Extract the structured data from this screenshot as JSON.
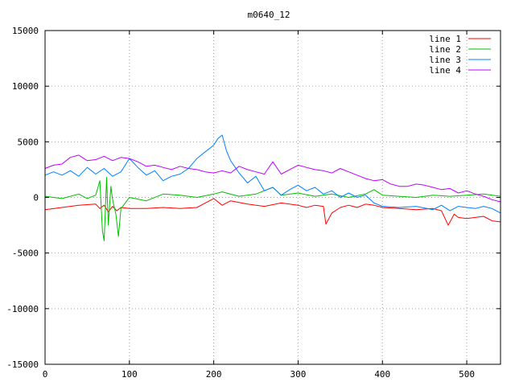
{
  "chart_data": {
    "type": "line",
    "title": "m0640_12",
    "xlabel": "",
    "ylabel": "",
    "xlim": [
      0,
      540
    ],
    "ylim": [
      -15000,
      15000
    ],
    "xticks": [
      0,
      100,
      200,
      300,
      400,
      500
    ],
    "yticks": [
      -15000,
      -10000,
      -5000,
      0,
      5000,
      10000,
      15000
    ],
    "grid": true,
    "legend_position": "top-right",
    "series": [
      {
        "name": "line 1",
        "color": "#ff0000",
        "x": [
          0,
          20,
          40,
          60,
          65,
          70,
          75,
          80,
          85,
          90,
          100,
          120,
          140,
          160,
          180,
          190,
          200,
          210,
          220,
          240,
          260,
          280,
          300,
          310,
          320,
          330,
          333,
          340,
          350,
          360,
          370,
          380,
          390,
          400,
          420,
          440,
          460,
          470,
          478,
          485,
          490,
          500,
          510,
          520,
          530,
          540
        ],
        "y": [
          -1100,
          -900,
          -700,
          -600,
          -1000,
          -700,
          -1300,
          -800,
          -1200,
          -900,
          -1000,
          -1000,
          -900,
          -1000,
          -900,
          -500,
          -100,
          -700,
          -300,
          -600,
          -800,
          -500,
          -700,
          -900,
          -700,
          -800,
          -2400,
          -1400,
          -900,
          -700,
          -900,
          -600,
          -700,
          -900,
          -1000,
          -1100,
          -1000,
          -1200,
          -2500,
          -1500,
          -1800,
          -1900,
          -1800,
          -1700,
          -2100,
          -2200
        ]
      },
      {
        "name": "line 2",
        "color": "#00c000",
        "x": [
          0,
          20,
          40,
          50,
          60,
          65,
          68,
          70,
          73,
          75,
          78,
          80,
          84,
          87,
          90,
          95,
          100,
          120,
          140,
          160,
          180,
          200,
          210,
          230,
          250,
          270,
          280,
          300,
          320,
          340,
          360,
          380,
          390,
          400,
          420,
          440,
          460,
          480,
          500,
          520,
          540
        ],
        "y": [
          100,
          -100,
          300,
          -100,
          200,
          1500,
          -3000,
          -3900,
          1800,
          -2500,
          1000,
          -200,
          -1500,
          -3500,
          -1000,
          -500,
          0,
          -300,
          300,
          200,
          0,
          300,
          500,
          100,
          300,
          900,
          200,
          400,
          100,
          300,
          0,
          300,
          700,
          200,
          100,
          0,
          200,
          100,
          200,
          300,
          100
        ]
      },
      {
        "name": "line 3",
        "color": "#0080ff",
        "x": [
          0,
          10,
          20,
          30,
          40,
          50,
          60,
          70,
          80,
          90,
          100,
          110,
          120,
          130,
          140,
          150,
          160,
          170,
          180,
          190,
          200,
          205,
          210,
          215,
          220,
          230,
          240,
          250,
          260,
          270,
          280,
          290,
          300,
          310,
          320,
          330,
          340,
          350,
          360,
          370,
          380,
          390,
          400,
          420,
          440,
          460,
          470,
          480,
          490,
          500,
          510,
          520,
          530,
          540
        ],
        "y": [
          2000,
          2300,
          2000,
          2400,
          1900,
          2700,
          2100,
          2600,
          1900,
          2300,
          3500,
          2700,
          2000,
          2400,
          1500,
          1900,
          2100,
          2600,
          3500,
          4100,
          4700,
          5300,
          5600,
          4200,
          3300,
          2200,
          1300,
          1900,
          600,
          900,
          200,
          700,
          1100,
          600,
          900,
          300,
          600,
          0,
          400,
          0,
          200,
          -500,
          -800,
          -900,
          -800,
          -1100,
          -700,
          -1200,
          -800,
          -900,
          -1000,
          -800,
          -1000,
          -1400
        ]
      },
      {
        "name": "line 4",
        "color": "#c000ff",
        "x": [
          0,
          10,
          20,
          30,
          40,
          50,
          60,
          70,
          80,
          90,
          100,
          110,
          120,
          130,
          140,
          150,
          160,
          170,
          180,
          190,
          200,
          210,
          220,
          230,
          240,
          250,
          260,
          270,
          280,
          290,
          300,
          310,
          320,
          330,
          340,
          350,
          360,
          370,
          380,
          390,
          400,
          410,
          420,
          430,
          440,
          450,
          460,
          470,
          480,
          490,
          500,
          510,
          520,
          530,
          540
        ],
        "y": [
          2600,
          2900,
          3000,
          3600,
          3800,
          3300,
          3400,
          3700,
          3300,
          3600,
          3500,
          3200,
          2800,
          2900,
          2700,
          2500,
          2800,
          2600,
          2500,
          2300,
          2200,
          2400,
          2200,
          2800,
          2500,
          2300,
          2100,
          3200,
          2100,
          2500,
          2900,
          2700,
          2500,
          2400,
          2200,
          2600,
          2300,
          2000,
          1700,
          1500,
          1600,
          1200,
          1000,
          1000,
          1200,
          1100,
          900,
          700,
          800,
          400,
          600,
          300,
          100,
          -200,
          -400
        ]
      }
    ]
  }
}
